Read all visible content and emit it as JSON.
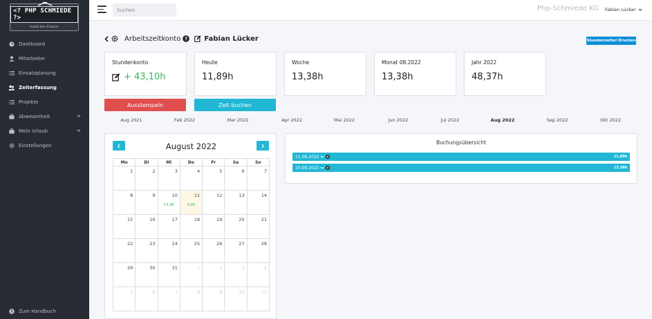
{
  "logo": {
    "text": "<? PHP SCHMIEDE ?>",
    "tagline": "build the Future"
  },
  "sidebar": {
    "items": [
      {
        "label": "Dashboard",
        "icon": "gauge-icon",
        "active": false
      },
      {
        "label": "Mitarbeiter",
        "icon": "user-icon",
        "active": false
      },
      {
        "label": "Einsatzplanung",
        "icon": "list-icon",
        "active": false
      },
      {
        "label": "Zeiterfassung",
        "icon": "users-icon",
        "active": true
      },
      {
        "label": "Projekte",
        "icon": "list-icon",
        "active": false
      },
      {
        "label": "Abwesenheit",
        "icon": "briefcase-icon",
        "active": false,
        "expandable": true
      },
      {
        "label": "Mein Urlaub",
        "icon": "briefcase-icon",
        "active": false,
        "expandable": true
      },
      {
        "label": "Einstellungen",
        "icon": "gear-icon",
        "active": false
      }
    ],
    "handbook": "Zum Handbuch"
  },
  "topbar": {
    "search_placeholder": "Suchen",
    "company": "Php-Schmiede KG",
    "user": "Fabian Lücker"
  },
  "header": {
    "title": "Arbeitszeitkonto",
    "employee": "Fabian Lücker",
    "print_button": "Stundenzettel Drucken"
  },
  "cards": [
    {
      "label": "Stundenkonto",
      "value": "+ 43,10h",
      "accent": "#35b25b"
    },
    {
      "label": "Heute",
      "value": "11,89h"
    },
    {
      "label": "Woche",
      "value": "13,38h"
    },
    {
      "label": "Monat 08.2022",
      "value": "13,38h"
    },
    {
      "label": "Jahr 2022",
      "value": "48,37h"
    }
  ],
  "buttons": {
    "clock_out": "Ausstempeln",
    "book_time": "Zeit buchen"
  },
  "months": [
    "Aug 2021",
    "Feb 2022",
    "Mar 2022",
    "Apr 2022",
    "Mai 2022",
    "Jun 2022",
    "Jul 2022",
    "Aug 2022",
    "Sep 2022",
    "Okt 2022"
  ],
  "active_month": "Aug 2022",
  "calendar": {
    "title": "August 2022",
    "weekdays": [
      "Mo",
      "Di",
      "Mi",
      "Do",
      "Fr",
      "Sa",
      "So"
    ],
    "weeks": [
      [
        {
          "d": "1"
        },
        {
          "d": "2"
        },
        {
          "d": "3"
        },
        {
          "d": "4"
        },
        {
          "d": "5"
        },
        {
          "d": "6"
        },
        {
          "d": "7"
        }
      ],
      [
        {
          "d": "8"
        },
        {
          "d": "9"
        },
        {
          "d": "10",
          "h": "13,38"
        },
        {
          "d": "11",
          "h": "0,00",
          "today": true
        },
        {
          "d": "12"
        },
        {
          "d": "13"
        },
        {
          "d": "14"
        }
      ],
      [
        {
          "d": "15"
        },
        {
          "d": "16"
        },
        {
          "d": "17"
        },
        {
          "d": "18"
        },
        {
          "d": "19"
        },
        {
          "d": "20"
        },
        {
          "d": "21"
        }
      ],
      [
        {
          "d": "22"
        },
        {
          "d": "23"
        },
        {
          "d": "24"
        },
        {
          "d": "25"
        },
        {
          "d": "26"
        },
        {
          "d": "27"
        },
        {
          "d": "28"
        }
      ],
      [
        {
          "d": "29"
        },
        {
          "d": "30"
        },
        {
          "d": "31"
        },
        {
          "d": "1",
          "m": true
        },
        {
          "d": "2",
          "m": true
        },
        {
          "d": "3",
          "m": true
        },
        {
          "d": "4",
          "m": true
        }
      ],
      [
        {
          "d": "5",
          "m": true
        },
        {
          "d": "6",
          "m": true
        },
        {
          "d": "7",
          "m": true
        },
        {
          "d": "8",
          "m": true
        },
        {
          "d": "9",
          "m": true
        },
        {
          "d": "10",
          "m": true
        },
        {
          "d": "11",
          "m": true
        }
      ]
    ]
  },
  "bookings": {
    "title": "Buchungsübersicht",
    "rows": [
      {
        "date": "11.08.2022",
        "duration": "11,89h"
      },
      {
        "date": "10.08.2022",
        "duration": "13,38h"
      }
    ]
  }
}
